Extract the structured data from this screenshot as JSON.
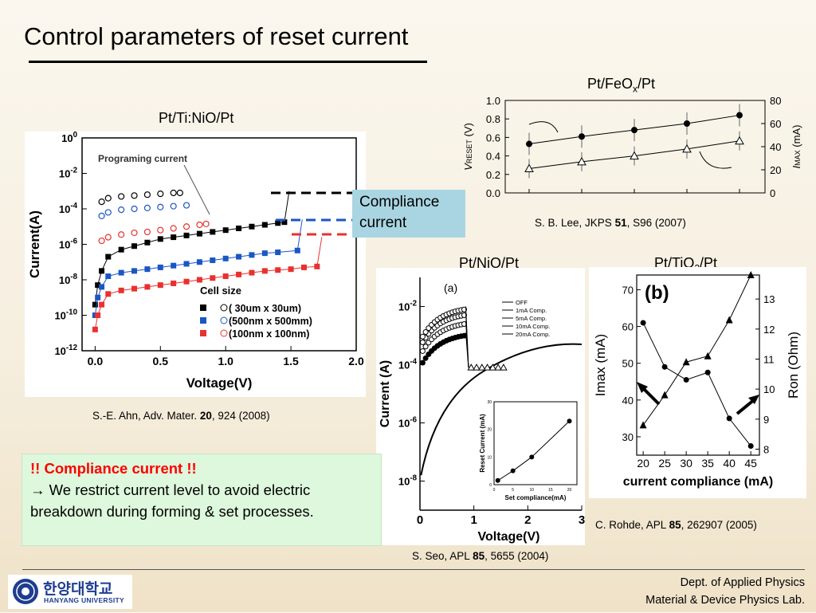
{
  "slide": {
    "title": "Control parameters of reset current",
    "compliance_box": {
      "line1": "Compliance",
      "line2": "current"
    },
    "notice": {
      "heading": "!! Compliance current !!",
      "arrow": "→",
      "body": "We restrict current level to avoid electric breakdown during forming & set processes."
    },
    "footer": {
      "dept": "Dept. of Applied Physics",
      "lab": "Material & Device Physics Lab.",
      "logo_korean": "한양대학교",
      "logo_english": "HANYANG UNIVERSITY"
    }
  },
  "fig_tinio": {
    "label": "Pt/Ti:NiO/Pt",
    "citation": {
      "pre": "S.-E. Ahn, Adv. Mater. ",
      "vol": "20",
      "post": ", 924 (2008)"
    },
    "chart_data": {
      "type": "scatter",
      "xlabel": "Voltage(V)",
      "ylabel": "Current(A)",
      "x_ticks": [
        "0.0",
        "0.5",
        "1.0",
        "1.5",
        "2.0"
      ],
      "y_ticks": [
        "10^0",
        "10^-2",
        "10^-4",
        "10^-6",
        "10^-8",
        "10^-10",
        "10^-12"
      ],
      "xlim": [
        -0.1,
        2.0
      ],
      "ylim_log10": [
        -12,
        0
      ],
      "annotation": "Programing current",
      "legend_title": "Cell size",
      "series": [
        {
          "name": "( 30um x  30um)",
          "color": "#000000",
          "set": [
            [
              0,
              -9.4
            ],
            [
              0.02,
              -8.3
            ],
            [
              0.05,
              -7.5
            ],
            [
              0.1,
              -6.7
            ],
            [
              0.2,
              -6.3
            ],
            [
              0.3,
              -6.1
            ],
            [
              0.4,
              -5.9
            ],
            [
              0.5,
              -5.7
            ],
            [
              0.6,
              -5.6
            ],
            [
              0.7,
              -5.5
            ],
            [
              0.8,
              -5.4
            ],
            [
              0.9,
              -5.3
            ],
            [
              1.0,
              -5.2
            ],
            [
              1.1,
              -5.1
            ],
            [
              1.2,
              -5.0
            ],
            [
              1.3,
              -4.9
            ],
            [
              1.4,
              -4.8
            ],
            [
              1.45,
              -4.75
            ]
          ],
          "open": [
            [
              0.05,
              -3.6
            ],
            [
              0.1,
              -3.4
            ],
            [
              0.2,
              -3.3
            ],
            [
              0.3,
              -3.25
            ],
            [
              0.4,
              -3.2
            ],
            [
              0.5,
              -3.15
            ],
            [
              0.6,
              -3.1
            ],
            [
              0.65,
              -3.1
            ]
          ],
          "compliance_log10": -3.0
        },
        {
          "name": "(500nm x 500mm)",
          "color": "#1a56c4",
          "set": [
            [
              0,
              -10.0
            ],
            [
              0.02,
              -9.0
            ],
            [
              0.05,
              -8.4
            ],
            [
              0.1,
              -7.8
            ],
            [
              0.2,
              -7.6
            ],
            [
              0.3,
              -7.5
            ],
            [
              0.4,
              -7.4
            ],
            [
              0.5,
              -7.3
            ],
            [
              0.6,
              -7.2
            ],
            [
              0.7,
              -7.1
            ],
            [
              0.8,
              -7.0
            ],
            [
              0.9,
              -6.9
            ],
            [
              1.0,
              -6.8
            ],
            [
              1.1,
              -6.7
            ],
            [
              1.2,
              -6.6
            ],
            [
              1.3,
              -6.5
            ],
            [
              1.4,
              -6.45
            ],
            [
              1.55,
              -6.35
            ]
          ],
          "open": [
            [
              0.05,
              -4.4
            ],
            [
              0.1,
              -4.2
            ],
            [
              0.2,
              -4.05
            ],
            [
              0.3,
              -4.0
            ],
            [
              0.4,
              -3.95
            ],
            [
              0.5,
              -3.9
            ],
            [
              0.6,
              -3.85
            ],
            [
              0.7,
              -3.8
            ]
          ],
          "compliance_log10": -4.6
        },
        {
          "name": "(100nm x 100nm)",
          "color": "#e8312f",
          "set": [
            [
              0,
              -10.8
            ],
            [
              0.02,
              -10.0
            ],
            [
              0.05,
              -9.4
            ],
            [
              0.1,
              -8.8
            ],
            [
              0.2,
              -8.6
            ],
            [
              0.3,
              -8.5
            ],
            [
              0.4,
              -8.4
            ],
            [
              0.5,
              -8.3
            ],
            [
              0.6,
              -8.2
            ],
            [
              0.7,
              -8.1
            ],
            [
              0.8,
              -8.0
            ],
            [
              0.9,
              -7.9
            ],
            [
              1.0,
              -7.8
            ],
            [
              1.1,
              -7.7
            ],
            [
              1.2,
              -7.6
            ],
            [
              1.3,
              -7.5
            ],
            [
              1.4,
              -7.45
            ],
            [
              1.5,
              -7.4
            ],
            [
              1.6,
              -7.3
            ],
            [
              1.7,
              -7.25
            ]
          ],
          "open": [
            [
              0.05,
              -5.8
            ],
            [
              0.1,
              -5.6
            ],
            [
              0.2,
              -5.45
            ],
            [
              0.3,
              -5.35
            ],
            [
              0.4,
              -5.3
            ],
            [
              0.5,
              -5.2
            ],
            [
              0.6,
              -5.1
            ],
            [
              0.7,
              -5.0
            ],
            [
              0.8,
              -4.9
            ],
            [
              0.85,
              -4.85
            ]
          ],
          "compliance_log10": -5.6
        }
      ]
    }
  },
  "fig_feox": {
    "label_pre": "Pt/FeO",
    "label_sub": "x",
    "label_post": "/Pt",
    "citation": {
      "pre": "S. B. Lee, JKPS ",
      "vol": "51",
      "post": ", S96 (2007)"
    },
    "chart_data": {
      "type": "scatter",
      "left_ylabel": {
        "pre": "V",
        "sub": "RESET",
        "post": " (V)"
      },
      "right_ylabel": {
        "pre": "I",
        "sub": "MAX",
        "post": " (mA)"
      },
      "left_ticks": [
        "1.0",
        "0.8",
        "0.6",
        "0.4",
        "0.2",
        "0.0"
      ],
      "right_ticks": [
        "80",
        "60",
        "40",
        "20",
        "0"
      ],
      "left_ylim": [
        0,
        1.0
      ],
      "right_ylim": [
        0,
        80
      ],
      "series": [
        {
          "name": "V_RESET",
          "marker": "filled-circle",
          "axis": "left",
          "values": [
            0.53,
            0.61,
            0.68,
            0.75,
            0.84
          ]
        },
        {
          "name": "I_MAX",
          "marker": "open-triangle",
          "axis": "right",
          "values": [
            21,
            27,
            32,
            38,
            45
          ]
        }
      ]
    }
  },
  "fig_nio": {
    "label": "Pt/NiO/Pt",
    "citation": {
      "pre": "S. Seo, APL ",
      "vol": "85",
      "post": ", 5655 (2004)"
    },
    "chart_data": {
      "type": "scatter",
      "panel_tag": "(a)",
      "xlabel": "Voltage(V)",
      "ylabel": "Current (A)",
      "x_ticks": [
        "0",
        "1",
        "2",
        "3"
      ],
      "y_ticks": [
        "10^-2",
        "10^-4",
        "10^-6",
        "10^-8"
      ],
      "legend": [
        "OFF",
        "1mA Comp.",
        "5mA Comp.",
        "10mA Comp.",
        "20mA Comp."
      ],
      "inset": {
        "xlabel": "Set compliance(mA)",
        "ylabel": "Reset Current (mA)",
        "x": [
          1,
          5,
          10,
          20
        ],
        "y": [
          1.5,
          5,
          10,
          23
        ],
        "x_ticks": [
          "0",
          "5",
          "10",
          "15",
          "20"
        ],
        "y_ticks": [
          "0",
          "10",
          "20",
          "30"
        ]
      }
    }
  },
  "fig_tio2": {
    "label_pre": "Pt/TiO",
    "label_sub": "2",
    "label_post": "/Pt",
    "citation": {
      "pre": "C. Rohde, APL ",
      "vol": "85",
      "post": ", 262907 (2005)"
    },
    "chart_data": {
      "type": "line",
      "panel_tag": "(b)",
      "xlabel": "current compliance (mA)",
      "left_ylabel": "Imax (mA)",
      "right_ylabel": "Ron (Ohm)",
      "x": [
        20,
        25,
        30,
        35,
        40,
        45
      ],
      "x_ticks": [
        "20",
        "25",
        "30",
        "35",
        "40",
        "45"
      ],
      "left_ticks": [
        "70",
        "60",
        "50",
        "40",
        "30"
      ],
      "right_ticks": [
        "13",
        "12",
        "11",
        "10",
        "9",
        "8"
      ],
      "series": [
        {
          "name": "Imax",
          "axis": "left",
          "marker": "filled-circle",
          "values": [
            61,
            49,
            45.5,
            47.5,
            35,
            27.5
          ]
        },
        {
          "name": "Ron",
          "axis": "right",
          "marker": "filled-triangle",
          "values": [
            8.8,
            9.8,
            10.9,
            11.1,
            12.3,
            13.8
          ]
        }
      ]
    }
  }
}
